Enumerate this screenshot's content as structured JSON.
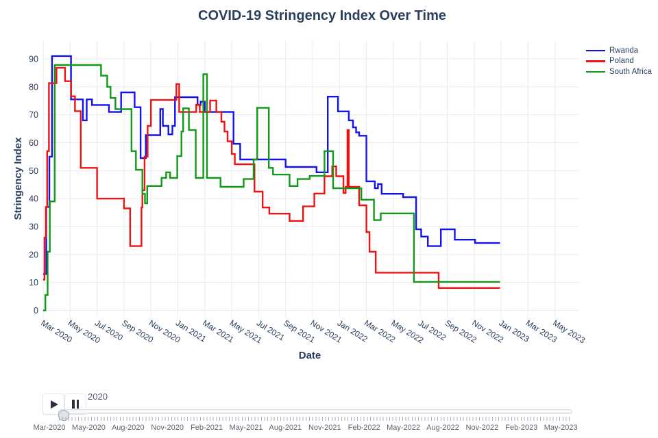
{
  "title": "COVID-19 Stringency Index Over Time",
  "x_axis": {
    "label": "Date"
  },
  "y_axis": {
    "label": "Stringency Index",
    "ticks": [
      0,
      10,
      20,
      30,
      40,
      50,
      60,
      70,
      80,
      90
    ]
  },
  "legend": {
    "items": [
      {
        "label": "Rwanda",
        "color": "#1212ee"
      },
      {
        "label": "Poland",
        "color": "#f01212"
      },
      {
        "label": "South Africa",
        "color": "#0f9a17"
      }
    ]
  },
  "slider": {
    "current_frame": "2020",
    "tick_labels": [
      "Mar-2020",
      "May-2020",
      "Aug-2020",
      "Nov-2020",
      "Feb-2021",
      "May-2021",
      "Aug-2021",
      "Nov-2021",
      "Feb-2022",
      "May-2022",
      "Aug-2022",
      "Nov-2022",
      "Feb-2023",
      "May-2023"
    ]
  },
  "chart_data": {
    "type": "line",
    "step_mode": "hv",
    "title": "COVID-19 Stringency Index Over Time",
    "xlabel": "Date",
    "ylabel": "Stringency Index",
    "ylim": [
      -2.3,
      96.4
    ],
    "grid": true,
    "legend_position": "top-right-outside",
    "x_tick_labels": [
      "Mar 2020",
      "May 2020",
      "Jul 2020",
      "Sep 2020",
      "Nov 2020",
      "Jan 2021",
      "Mar 2021",
      "May 2021",
      "Jul 2021",
      "Sep 2021",
      "Nov 2021",
      "Jan 2022",
      "Mar 2022",
      "May 2022",
      "Jul 2022",
      "Sep 2022",
      "Nov 2022",
      "Jan 2023",
      "Mar 2023",
      "May 2023"
    ],
    "series": [
      {
        "name": "Rwanda",
        "color": "#1212ee",
        "points": [
          [
            "2020-03-01",
            13
          ],
          [
            "2020-03-08",
            37
          ],
          [
            "2020-03-15",
            55
          ],
          [
            "2020-03-21",
            91
          ],
          [
            "2020-05-03",
            75.5
          ],
          [
            "2020-05-30",
            68
          ],
          [
            "2020-06-08",
            75.5
          ],
          [
            "2020-06-20",
            73.5
          ],
          [
            "2020-07-28",
            71
          ],
          [
            "2020-08-25",
            78
          ],
          [
            "2020-09-25",
            72.7
          ],
          [
            "2020-10-08",
            54.5
          ],
          [
            "2020-10-20",
            62.7
          ],
          [
            "2020-11-22",
            72
          ],
          [
            "2020-11-28",
            66
          ],
          [
            "2020-12-10",
            63
          ],
          [
            "2020-12-19",
            66
          ],
          [
            "2020-12-25",
            76.3
          ],
          [
            "2021-02-15",
            73.5
          ],
          [
            "2021-02-22",
            74.7
          ],
          [
            "2021-03-01",
            71
          ],
          [
            "2021-05-05",
            59.6
          ],
          [
            "2021-05-20",
            54
          ],
          [
            "2021-09-01",
            51.3
          ],
          [
            "2021-11-10",
            49.4
          ],
          [
            "2021-12-05",
            76.5
          ],
          [
            "2021-12-28",
            71.2
          ],
          [
            "2022-01-22",
            68
          ],
          [
            "2022-02-01",
            65.5
          ],
          [
            "2022-02-08",
            63.7
          ],
          [
            "2022-02-15",
            62.5
          ],
          [
            "2022-03-01",
            46.2
          ],
          [
            "2022-03-20",
            43.7
          ],
          [
            "2022-03-27",
            45.2
          ],
          [
            "2022-04-05",
            41.7
          ],
          [
            "2022-05-23",
            40.5
          ],
          [
            "2022-06-22",
            29
          ],
          [
            "2022-07-03",
            26.4
          ],
          [
            "2022-07-18",
            23
          ],
          [
            "2022-08-17",
            29
          ],
          [
            "2022-09-18",
            25.3
          ],
          [
            "2022-11-03",
            24.1
          ],
          [
            "2022-12-29",
            24.1
          ]
        ]
      },
      {
        "name": "Poland",
        "color": "#f01212",
        "points": [
          [
            "2020-03-01",
            11
          ],
          [
            "2020-03-04",
            26
          ],
          [
            "2020-03-07",
            37
          ],
          [
            "2020-03-10",
            57
          ],
          [
            "2020-03-14",
            81.3
          ],
          [
            "2020-03-31",
            86.8
          ],
          [
            "2020-04-20",
            82
          ],
          [
            "2020-05-03",
            76.6
          ],
          [
            "2020-05-12",
            71.3
          ],
          [
            "2020-05-25",
            51
          ],
          [
            "2020-07-01",
            40
          ],
          [
            "2020-09-01",
            36.5
          ],
          [
            "2020-09-15",
            23
          ],
          [
            "2020-10-10",
            36.8
          ],
          [
            "2020-10-12",
            43
          ],
          [
            "2020-10-17",
            55
          ],
          [
            "2020-10-24",
            66
          ],
          [
            "2020-11-01",
            75.3
          ],
          [
            "2020-12-28",
            81
          ],
          [
            "2021-01-04",
            71
          ],
          [
            "2021-02-12",
            73.6
          ],
          [
            "2021-02-20",
            71
          ],
          [
            "2021-03-13",
            75.1
          ],
          [
            "2021-03-27",
            71
          ],
          [
            "2021-04-08",
            67.5
          ],
          [
            "2021-04-15",
            64
          ],
          [
            "2021-04-22",
            60.5
          ],
          [
            "2021-05-01",
            56
          ],
          [
            "2021-05-08",
            52.3
          ],
          [
            "2021-06-22",
            42.5
          ],
          [
            "2021-07-10",
            36.8
          ],
          [
            "2021-07-25",
            34.6
          ],
          [
            "2021-09-10",
            32
          ],
          [
            "2021-10-10",
            37.2
          ],
          [
            "2021-11-05",
            41.8
          ],
          [
            "2021-11-28",
            48
          ],
          [
            "2021-12-15",
            51.5
          ],
          [
            "2021-12-24",
            48
          ],
          [
            "2022-01-10",
            42
          ],
          [
            "2022-01-15",
            44.2
          ],
          [
            "2022-01-19",
            64.5
          ],
          [
            "2022-01-22",
            44.2
          ],
          [
            "2022-02-15",
            37.6
          ],
          [
            "2022-03-01",
            28
          ],
          [
            "2022-03-08",
            21
          ],
          [
            "2022-03-22",
            13.5
          ],
          [
            "2022-08-12",
            8
          ],
          [
            "2022-12-29",
            8
          ]
        ]
      },
      {
        "name": "South Africa",
        "color": "#0f9a17",
        "points": [
          [
            "2020-03-01",
            0
          ],
          [
            "2020-03-06",
            5.5
          ],
          [
            "2020-03-11",
            21
          ],
          [
            "2020-03-16",
            39
          ],
          [
            "2020-03-27",
            87.8
          ],
          [
            "2020-07-10",
            84
          ],
          [
            "2020-07-24",
            80
          ],
          [
            "2020-08-01",
            76
          ],
          [
            "2020-08-12",
            72
          ],
          [
            "2020-09-18",
            57
          ],
          [
            "2020-09-28",
            50.3
          ],
          [
            "2020-10-12",
            41.7
          ],
          [
            "2020-10-18",
            38.3
          ],
          [
            "2020-10-23",
            44.5
          ],
          [
            "2020-11-25",
            47.4
          ],
          [
            "2020-12-05",
            49.4
          ],
          [
            "2020-12-14",
            47.4
          ],
          [
            "2020-12-30",
            55.2
          ],
          [
            "2021-01-09",
            64
          ],
          [
            "2021-01-13",
            72.3
          ],
          [
            "2021-01-26",
            64.5
          ],
          [
            "2021-02-11",
            47.4
          ],
          [
            "2021-02-28",
            84.5
          ],
          [
            "2021-03-06",
            47.4
          ],
          [
            "2021-04-06",
            44.2
          ],
          [
            "2021-05-28",
            47
          ],
          [
            "2021-06-20",
            54
          ],
          [
            "2021-06-28",
            72.5
          ],
          [
            "2021-07-24",
            51
          ],
          [
            "2021-08-03",
            48.6
          ],
          [
            "2021-09-10",
            44.5
          ],
          [
            "2021-09-28",
            47
          ],
          [
            "2021-10-25",
            48.1
          ],
          [
            "2021-11-28",
            57
          ],
          [
            "2021-12-17",
            43.7
          ],
          [
            "2022-02-20",
            39.6
          ],
          [
            "2022-03-18",
            32.3
          ],
          [
            "2022-04-03",
            34.7
          ],
          [
            "2022-06-17",
            10.2
          ],
          [
            "2022-12-29",
            10.2
          ]
        ]
      }
    ]
  }
}
